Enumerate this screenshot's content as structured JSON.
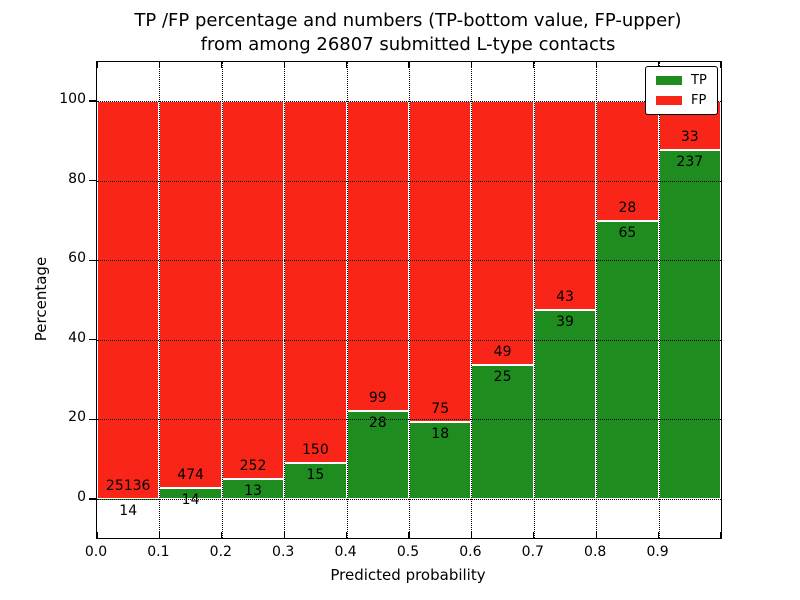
{
  "title": {
    "line1": "TP /FP percentage and numbers (TP-bottom value, FP-upper)",
    "line2": "from among 26807 submitted L-type contacts"
  },
  "axes": {
    "x_label": "Predicted probability",
    "y_label": "Percentage",
    "x_tick_labels": [
      "0.0",
      "0.1",
      "0.2",
      "0.3",
      "0.4",
      "0.5",
      "0.6",
      "0.7",
      "0.8",
      "0.9"
    ],
    "y_tick_labels": [
      "0",
      "20",
      "40",
      "60",
      "80",
      "100"
    ]
  },
  "legend": {
    "position": "upper right",
    "entries": [
      {
        "label": "TP",
        "color": "#1e8c1e"
      },
      {
        "label": "FP",
        "color": "#f92519"
      }
    ]
  },
  "chart_data": {
    "type": "bar",
    "stacked": true,
    "normalized_to_percent": true,
    "title": "TP /FP percentage and numbers (TP-bottom value, FP-upper) from among 26807 submitted L-type contacts",
    "xlabel": "Predicted probability",
    "ylabel": "Percentage",
    "xlim": [
      0.0,
      1.0
    ],
    "ylim": [
      -9.8,
      109.8
    ],
    "grid": "dotted black, both axes",
    "legend_position": "upper right",
    "total_submitted": 26807,
    "bin_width": 0.1,
    "bin_starts": [
      0.0,
      0.1,
      0.2,
      0.3,
      0.4,
      0.5,
      0.6,
      0.7,
      0.8,
      0.9
    ],
    "series": [
      {
        "name": "TP",
        "color": "#1e8c1e",
        "counts": [
          14,
          14,
          13,
          15,
          28,
          18,
          25,
          39,
          65,
          237
        ]
      },
      {
        "name": "FP",
        "color": "#f92519",
        "counts": [
          25136,
          474,
          252,
          150,
          99,
          75,
          49,
          43,
          28,
          33
        ]
      }
    ],
    "tp_percentages": [
      0.06,
      2.87,
      4.91,
      9.09,
      22.05,
      19.35,
      33.78,
      47.56,
      69.89,
      87.78
    ]
  }
}
